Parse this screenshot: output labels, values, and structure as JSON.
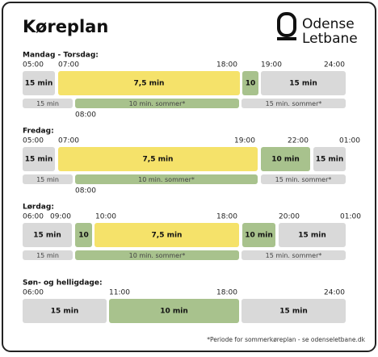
{
  "header": {
    "title": "Køreplan",
    "logo": [
      "Odense",
      "Letbane"
    ]
  },
  "sections": [
    {
      "label": "Mandag - Torsdag:",
      "times": [
        "05:00",
        "07:00",
        "18:00",
        "19:00",
        "24:00"
      ],
      "blocks": [
        {
          "label": "15 min",
          "kind": "gray"
        },
        {
          "label": "7,5 min",
          "kind": "yellow"
        },
        {
          "label": "10",
          "kind": "green"
        },
        {
          "label": "15 min",
          "kind": "gray"
        }
      ],
      "summer": [
        {
          "label": "15 min",
          "kind": "gray"
        },
        {
          "label": "10 min. sommer*",
          "kind": "green"
        },
        {
          "label": "15 min. sommer*",
          "kind": "gray"
        }
      ],
      "note_time": "08:00"
    },
    {
      "label": "Fredag:",
      "times": [
        "05:00",
        "07:00",
        "19:00",
        "22:00",
        "01:00"
      ],
      "blocks": [
        {
          "label": "15 min",
          "kind": "gray"
        },
        {
          "label": "7,5 min",
          "kind": "yellow"
        },
        {
          "label": "10 min",
          "kind": "green"
        },
        {
          "label": "15 min",
          "kind": "gray"
        }
      ],
      "summer": [
        {
          "label": "15 min",
          "kind": "gray"
        },
        {
          "label": "10 min. sommer*",
          "kind": "green"
        },
        {
          "label": "15 min. sommer*",
          "kind": "gray"
        }
      ],
      "note_time": "08:00"
    },
    {
      "label": "Lørdag:",
      "times": [
        "06:00",
        "09:00",
        "10:00",
        "18:00",
        "20:00",
        "01:00"
      ],
      "blocks": [
        {
          "label": "15 min",
          "kind": "gray"
        },
        {
          "label": "10",
          "kind": "green"
        },
        {
          "label": "7,5 min",
          "kind": "yellow"
        },
        {
          "label": "10 min",
          "kind": "green"
        },
        {
          "label": "15 min",
          "kind": "gray"
        }
      ],
      "summer": [
        {
          "label": "15 min",
          "kind": "gray"
        },
        {
          "label": "10 min. sommer*",
          "kind": "green"
        },
        {
          "label": "15 min. sommer*",
          "kind": "gray"
        }
      ]
    },
    {
      "label": "Søn- og helligdage:",
      "times": [
        "06:00",
        "11:00",
        "18:00",
        "24:00"
      ],
      "blocks": [
        {
          "label": "15 min",
          "kind": "gray"
        },
        {
          "label": "10 min",
          "kind": "green"
        },
        {
          "label": "15 min",
          "kind": "gray"
        }
      ]
    }
  ],
  "footnote": "*Periode for sommerkøreplan - se odenseletbane.dk"
}
